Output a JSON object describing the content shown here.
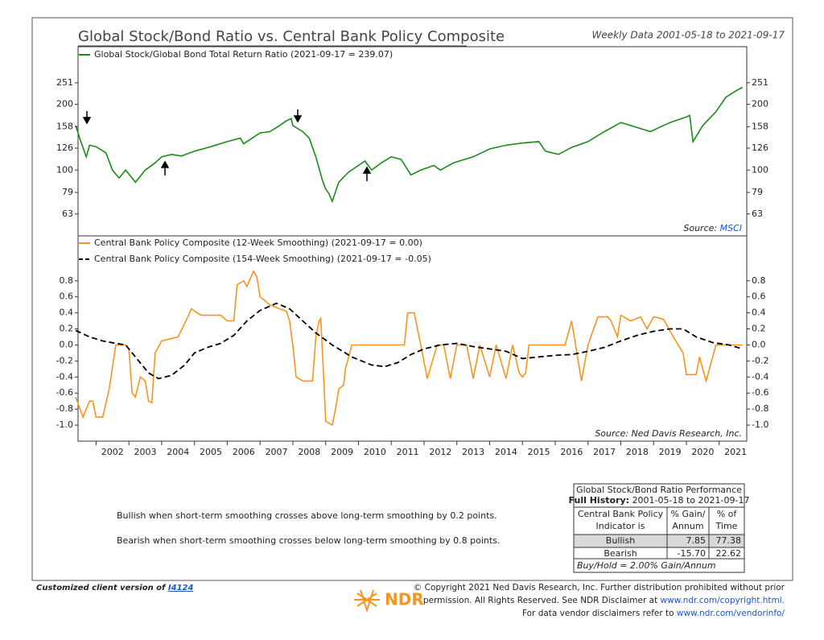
{
  "title": "Global Stock/Bond Ratio vs. Central Bank Policy Composite",
  "subtitle": "Weekly Data 2001-05-18 to 2021-09-17",
  "chart_data": [
    {
      "type": "line",
      "log_scale": true,
      "xlim": [
        2001.45,
        2021.84
      ],
      "ylim": [
        50,
        367
      ],
      "yticks": [
        63,
        79,
        100,
        126,
        158,
        200,
        251
      ],
      "source_label": "Source:",
      "source": "MSCI",
      "series": [
        {
          "name": "Global Stock/Global Bond Total Return Ratio (2021-09-17 = 239.07)",
          "color": "#1a8a1a",
          "x": [
            2001.38,
            2001.5,
            2001.7,
            2001.8,
            2002.0,
            2002.3,
            2002.5,
            2002.7,
            2002.9,
            2003.1,
            2003.2,
            2003.5,
            2003.8,
            2004.0,
            2004.3,
            2004.6,
            2005.0,
            2005.5,
            2006.0,
            2006.4,
            2006.5,
            2007.0,
            2007.3,
            2007.6,
            2007.8,
            2007.95,
            2008.0,
            2008.3,
            2008.5,
            2008.7,
            2008.9,
            2009.0,
            2009.1,
            2009.2,
            2009.4,
            2009.7,
            2010.0,
            2010.2,
            2010.4,
            2010.7,
            2011.0,
            2011.3,
            2011.6,
            2011.9,
            2012.3,
            2012.5,
            2012.9,
            2013.5,
            2014.0,
            2014.5,
            2015.0,
            2015.5,
            2015.7,
            2016.1,
            2016.5,
            2017.0,
            2017.5,
            2018.0,
            2018.3,
            2018.9,
            2019.5,
            2020.0,
            2020.1,
            2020.2,
            2020.5,
            2020.9,
            2021.2,
            2021.5,
            2021.71
          ],
          "values": [
            160,
            140,
            115,
            130,
            128,
            120,
            100,
            92,
            100,
            92,
            88,
            100,
            108,
            115,
            118,
            116,
            122,
            128,
            135,
            140,
            132,
            148,
            150,
            160,
            168,
            172,
            160,
            150,
            140,
            115,
            90,
            82,
            78,
            72,
            88,
            98,
            105,
            110,
            100,
            108,
            115,
            112,
            95,
            100,
            105,
            100,
            108,
            115,
            125,
            130,
            133,
            135,
            122,
            118,
            127,
            135,
            150,
            165,
            160,
            150,
            165,
            175,
            178,
            135,
            160,
            185,
            215,
            230,
            239.07
          ]
        }
      ]
    },
    {
      "type": "line",
      "xlim": [
        2001.45,
        2021.84
      ],
      "ylim": [
        -1.2,
        1.36
      ],
      "xticks": [
        2002,
        2003,
        2004,
        2005,
        2006,
        2007,
        2008,
        2009,
        2010,
        2011,
        2012,
        2013,
        2014,
        2015,
        2016,
        2017,
        2018,
        2019,
        2020,
        2021
      ],
      "yticks": [
        {
          "value": -1.0,
          "label": "-1.0"
        },
        -0.8,
        -0.6,
        -0.4,
        -0.2,
        {
          "value": 0,
          "label": "0.0"
        },
        0.2,
        0.4,
        0.6,
        0.8
      ],
      "source_label": "Source:",
      "source": "Ned Davis Research, Inc.",
      "series": [
        {
          "name": "Central Bank Policy Composite (12-Week Smoothing) (2021-09-17 = 0.00)",
          "color": "#f7941d",
          "dashed": false,
          "x": [
            2001.38,
            2001.6,
            2001.8,
            2001.9,
            2002.0,
            2002.2,
            2002.4,
            2002.6,
            2002.9,
            2003.0,
            2003.1,
            2003.2,
            2003.35,
            2003.5,
            2003.6,
            2003.7,
            2003.8,
            2004.0,
            2004.5,
            2004.8,
            2004.9,
            2005.2,
            2005.8,
            2006.0,
            2006.2,
            2006.3,
            2006.5,
            2006.6,
            2006.8,
            2006.9,
            2007.0,
            2007.3,
            2007.6,
            2007.8,
            2007.9,
            2008.0,
            2008.1,
            2008.3,
            2008.6,
            2008.7,
            2008.8,
            2008.85,
            2008.95,
            2009.0,
            2009.2,
            2009.3,
            2009.4,
            2009.55,
            2009.6,
            2009.8,
            2011.4,
            2011.5,
            2011.7,
            2011.9,
            2012.1,
            2012.4,
            2012.6,
            2012.8,
            2013.0,
            2013.3,
            2013.5,
            2013.7,
            2014.0,
            2014.2,
            2014.5,
            2014.7,
            2014.9,
            2015.0,
            2015.1,
            2015.2,
            2016.3,
            2016.5,
            2016.8,
            2017.0,
            2017.3,
            2017.6,
            2017.7,
            2017.9,
            2018.0,
            2018.3,
            2018.6,
            2018.8,
            2019.0,
            2019.3,
            2019.6,
            2019.9,
            2020.0,
            2020.3,
            2020.4,
            2020.6,
            2020.9,
            2021.71
          ],
          "values": [
            -0.65,
            -0.9,
            -0.7,
            -0.7,
            -0.9,
            -0.9,
            -0.55,
            0,
            0,
            -0.05,
            -0.6,
            -0.65,
            -0.4,
            -0.45,
            -0.7,
            -0.72,
            -0.1,
            0.05,
            0.1,
            0.35,
            0.45,
            0.37,
            0.37,
            0.3,
            0.3,
            0.75,
            0.8,
            0.73,
            0.92,
            0.85,
            0.6,
            0.5,
            0.45,
            0.42,
            0.3,
            0,
            -0.4,
            -0.45,
            -0.45,
            0.1,
            0.3,
            0.33,
            -0.5,
            -0.95,
            -1.0,
            -0.8,
            -0.55,
            -0.5,
            -0.3,
            0,
            0,
            0.4,
            0.4,
            0,
            -0.42,
            0,
            0,
            -0.42,
            0,
            0,
            -0.42,
            0,
            -0.4,
            0,
            -0.42,
            0,
            -0.35,
            -0.4,
            -0.35,
            0,
            0,
            0.3,
            -0.45,
            0,
            0.35,
            0.35,
            0.3,
            0.1,
            0.37,
            0.3,
            0.35,
            0.2,
            0.35,
            0.32,
            0.1,
            -0.1,
            -0.37,
            -0.37,
            -0.15,
            -0.45,
            0,
            0
          ]
        },
        {
          "name": "Central Bank Policy Composite (154-Week Smoothing) (2021-09-17 = -0.05)",
          "color": "#000000",
          "dashed": true,
          "x": [
            2001.38,
            2001.8,
            2002.2,
            2002.6,
            2002.9,
            2003.2,
            2003.6,
            2003.9,
            2004.3,
            2004.7,
            2005.0,
            2005.4,
            2005.8,
            2006.2,
            2006.6,
            2007.0,
            2007.5,
            2007.9,
            2008.3,
            2008.7,
            2009.2,
            2009.8,
            2010.4,
            2010.8,
            2011.2,
            2011.6,
            2012.0,
            2012.5,
            2013.0,
            2013.5,
            2014.0,
            2014.5,
            2015.0,
            2015.5,
            2016.0,
            2016.5,
            2017.0,
            2017.5,
            2018.0,
            2018.5,
            2019.0,
            2019.5,
            2019.9,
            2020.3,
            2020.8,
            2021.3,
            2021.71
          ],
          "values": [
            0.18,
            0.1,
            0.05,
            0.02,
            0,
            -0.15,
            -0.35,
            -0.42,
            -0.38,
            -0.25,
            -0.1,
            -0.03,
            0.02,
            0.12,
            0.3,
            0.43,
            0.52,
            0.45,
            0.3,
            0.15,
            0,
            -0.15,
            -0.25,
            -0.27,
            -0.22,
            -0.12,
            -0.05,
            0,
            0.02,
            -0.02,
            -0.05,
            -0.08,
            -0.17,
            -0.15,
            -0.13,
            -0.12,
            -0.08,
            -0.03,
            0.05,
            0.12,
            0.17,
            0.2,
            0.2,
            0.1,
            0.03,
            0,
            -0.05
          ]
        }
      ]
    }
  ],
  "notes": [
    "Bullish when short-term smoothing crosses above long-term smoothing by 0.2 points.",
    "Bearish when short-term smoothing crosses below long-term smoothing by 0.8 points."
  ],
  "table": {
    "title": "Global Stock/Bond Ratio Performance",
    "history_label": "Full History:",
    "history": "2001-05-18 to 2021-09-17",
    "headers": [
      [
        "Central Bank Policy",
        "Indicator is"
      ],
      [
        "% Gain/",
        "Annum"
      ],
      [
        "% of",
        "Time"
      ]
    ],
    "rows": [
      [
        "Bullish",
        "7.85",
        "77.38"
      ],
      [
        "Bearish",
        "-15.70",
        "22.62"
      ]
    ],
    "footnote": "Buy/Hold = 2.00% Gain/Annum"
  },
  "footer": {
    "client": "Customized client version of",
    "client_code": "I4124",
    "logo": "NDR",
    "copyright": [
      "© Copyright 2021 Ned Davis Research, Inc. Further distribution prohibited without prior",
      "permission. All Rights Reserved. See NDR Disclaimer at",
      "For data vendor disclaimers refer to"
    ],
    "links": [
      "www.ndr.com/copyright.html.",
      "www.ndr.com/vendorinfo/"
    ]
  }
}
